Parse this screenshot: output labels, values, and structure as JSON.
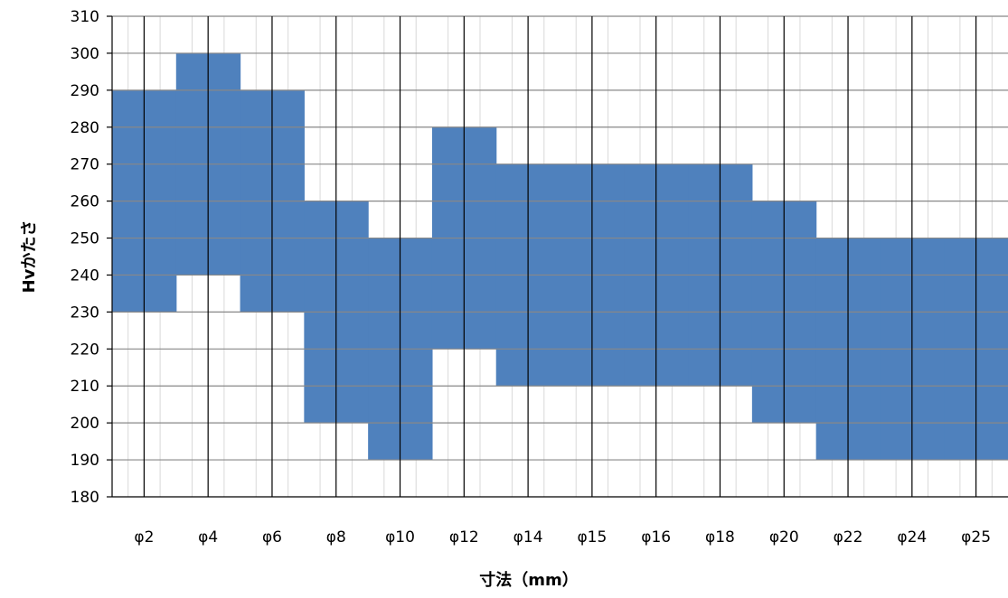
{
  "chart_data": {
    "type": "area",
    "title": "",
    "xlabel": "寸法（mm）",
    "ylabel": "Hvかたさ",
    "categories": [
      "φ2",
      "φ4",
      "φ6",
      "φ8",
      "φ10",
      "φ12",
      "φ14",
      "φ15",
      "φ16",
      "φ18",
      "φ20",
      "φ22",
      "φ24",
      "φ25"
    ],
    "series": [
      {
        "name": "",
        "low": [
          230,
          240,
          230,
          200,
          190,
          220,
          210,
          210,
          210,
          210,
          200,
          190,
          190,
          190
        ]
      },
      {
        "name": "",
        "high": [
          290,
          300,
          290,
          260,
          250,
          280,
          270,
          270,
          270,
          270,
          260,
          250,
          250,
          250
        ]
      }
    ],
    "ylim": [
      180,
      310
    ],
    "ytick_step": 10,
    "grid": true,
    "legend": "none",
    "colors": {
      "band": "#4F81BD",
      "minor_grid": "#d9d9d9",
      "major_grid": "#000000",
      "h_grid": "#888888"
    }
  }
}
